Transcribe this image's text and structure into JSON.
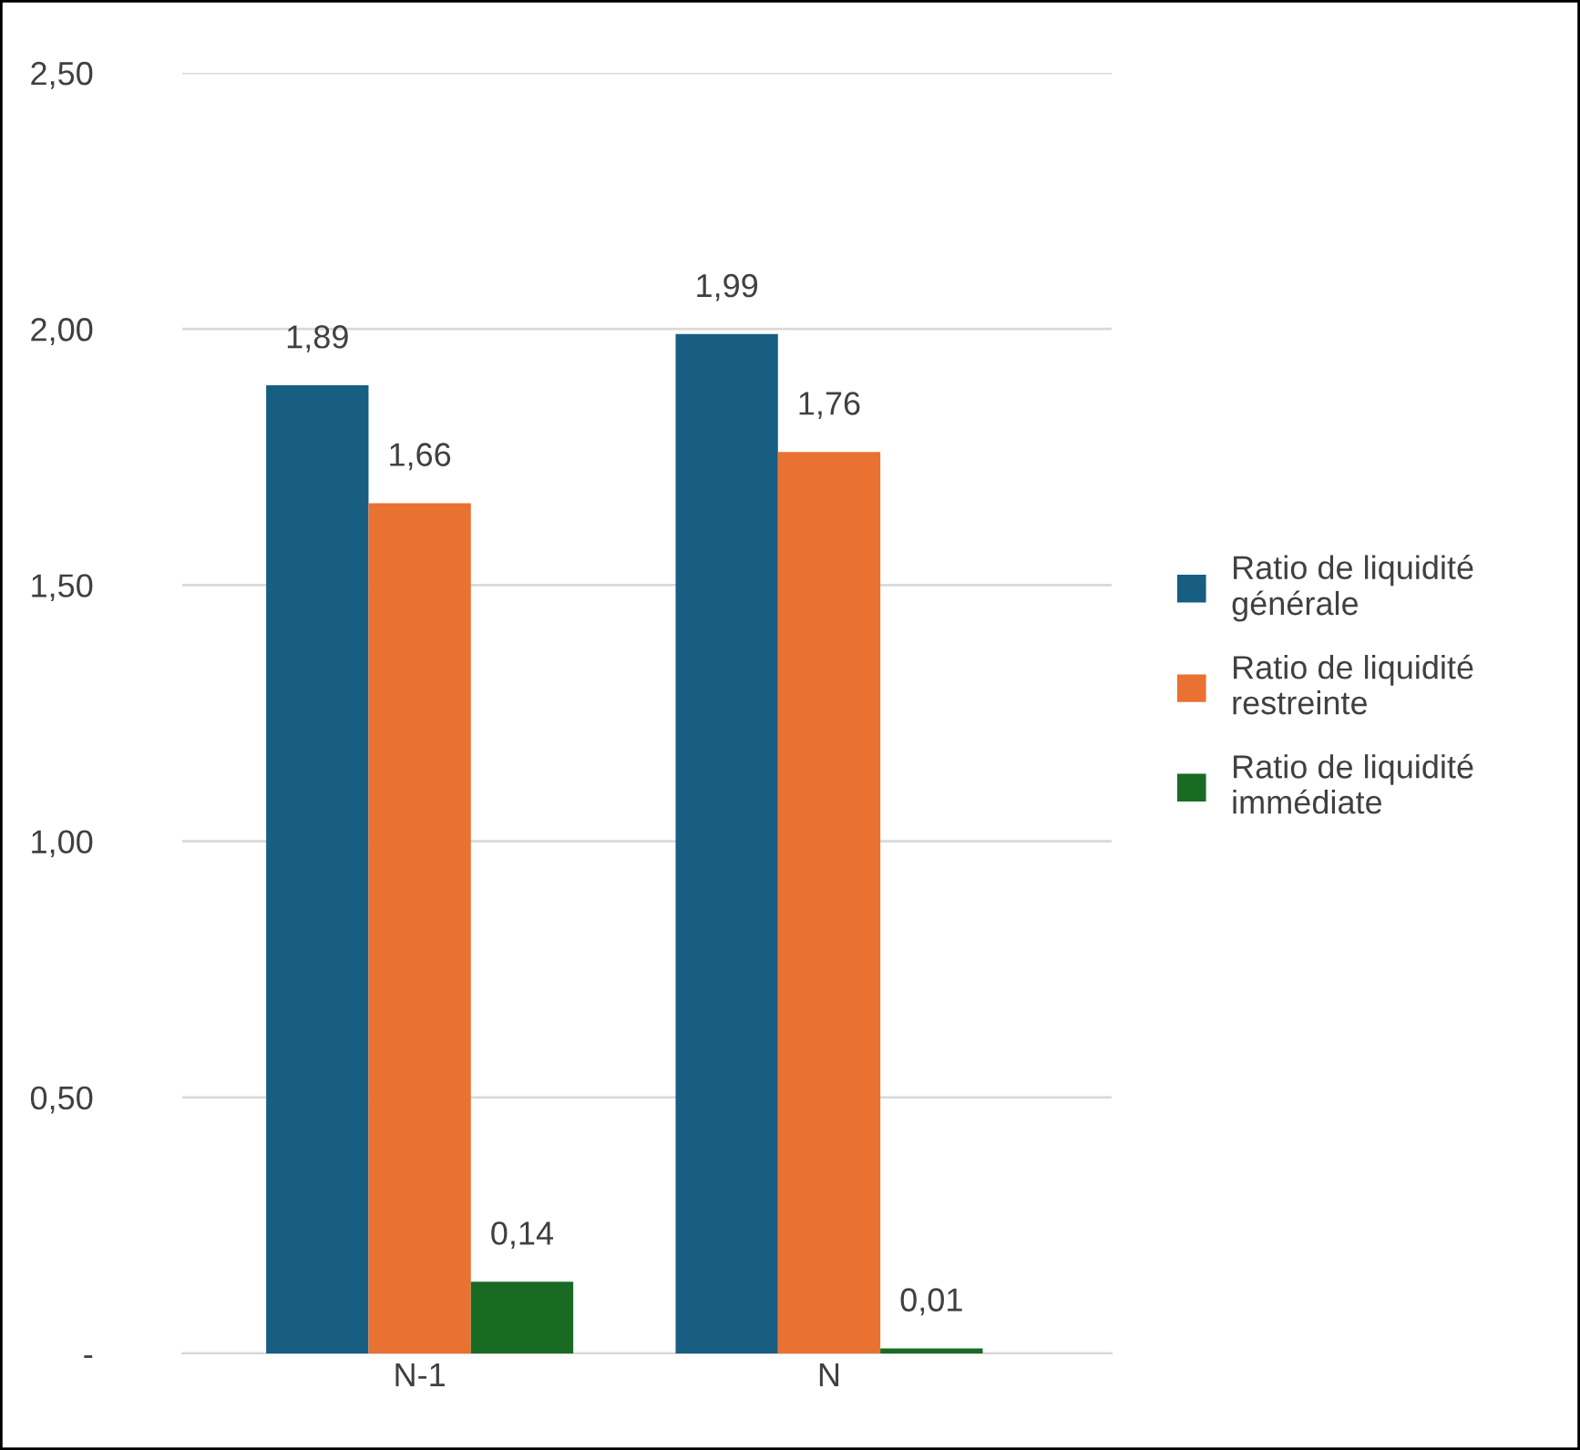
{
  "chart_data": {
    "type": "bar",
    "categories": [
      "N-1",
      "N"
    ],
    "series": [
      {
        "name": "Ratio de liquidité générale",
        "color": "#175e82",
        "values": [
          1.89,
          1.99
        ],
        "value_labels": [
          "1,89",
          "1,99"
        ]
      },
      {
        "name": "Ratio de liquidité restreinte",
        "color": "#e97132",
        "values": [
          1.66,
          1.76
        ],
        "value_labels": [
          "1,66",
          "1,76"
        ]
      },
      {
        "name": "Ratio de liquidité immédiate",
        "color": "#196b24",
        "values": [
          0.14,
          0.01
        ],
        "value_labels": [
          "0,14",
          "0,01"
        ]
      }
    ],
    "ylim": [
      0,
      2.5
    ],
    "yticks": [
      {
        "value": 0,
        "label": "-"
      },
      {
        "value": 0.5,
        "label": "0,50"
      },
      {
        "value": 1,
        "label": "1,00"
      },
      {
        "value": 1.5,
        "label": "1,50"
      },
      {
        "value": 2,
        "label": "2,00"
      },
      {
        "value": 2.5,
        "label": "2,50"
      }
    ],
    "grid": "y",
    "legend": "right"
  }
}
